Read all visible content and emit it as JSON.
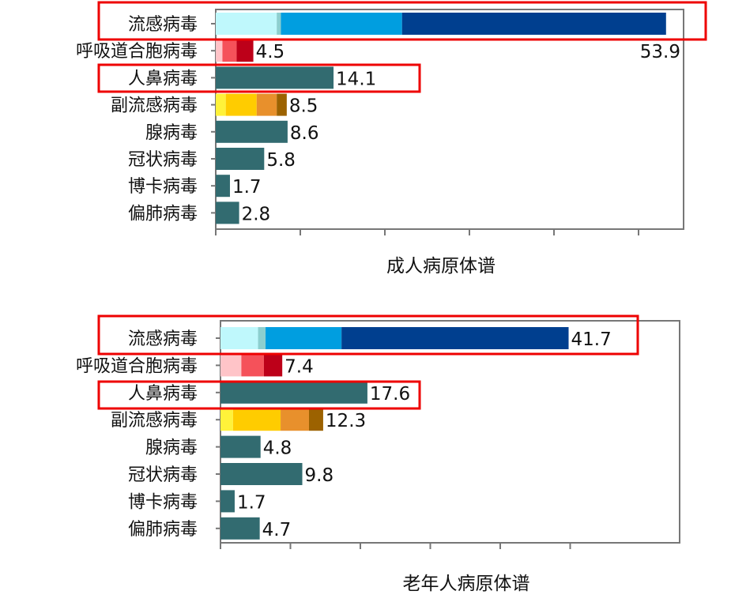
{
  "chart_data": [
    {
      "type": "bar",
      "orientation": "horizontal",
      "stacked": true,
      "title": "成人病原体谱",
      "xlim": [
        0,
        56
      ],
      "grid": false,
      "categories": [
        "流感病毒",
        "呼吸道合胞病毒",
        "人鼻病毒",
        "副流感病毒",
        "腺病毒",
        "冠状病毒",
        "博卡病毒",
        "偏肺病毒"
      ],
      "totals": [
        53.9,
        4.5,
        14.1,
        8.5,
        8.6,
        5.8,
        1.7,
        2.8
      ],
      "total_labels": [
        "53.9",
        "4.5",
        "14.1",
        "8.5",
        "8.6",
        "5.8",
        "1.7",
        "2.8"
      ],
      "segments": [
        [
          7.3,
          0.5,
          14.5,
          31.6
        ],
        [
          0.8,
          1.7,
          2.0
        ],
        [
          14.1
        ],
        [
          1.2,
          3.7,
          2.4,
          1.2
        ],
        [
          8.6
        ],
        [
          5.8
        ],
        [
          1.7
        ],
        [
          2.8
        ]
      ],
      "highlighted": [
        "流感病毒",
        "人鼻病毒"
      ]
    },
    {
      "type": "bar",
      "orientation": "horizontal",
      "stacked": true,
      "title": "老年人病原体谱",
      "xlim": [
        0,
        55
      ],
      "grid": false,
      "categories": [
        "流感病毒",
        "呼吸道合胞病毒",
        "人鼻病毒",
        "副流感病毒",
        "腺病毒",
        "冠状病毒",
        "博卡病毒",
        "偏肺病毒"
      ],
      "totals": [
        41.7,
        7.4,
        17.6,
        12.3,
        4.8,
        9.8,
        1.7,
        4.7
      ],
      "total_labels": [
        "41.7",
        "7.4",
        "17.6",
        "12.3",
        "4.8",
        "9.8",
        "1.7",
        "4.7"
      ],
      "segments": [
        [
          4.5,
          0.9,
          9.1,
          27.2
        ],
        [
          2.5,
          2.7,
          2.2
        ],
        [
          17.6
        ],
        [
          1.5,
          5.7,
          3.4,
          1.7
        ],
        [
          4.8
        ],
        [
          9.8
        ],
        [
          1.7
        ],
        [
          4.7
        ]
      ],
      "highlighted": [
        "流感病毒",
        "人鼻病毒"
      ]
    }
  ],
  "colors": {
    "flu": [
      "#bff8fc",
      "#8ccfcf",
      "#009ee0",
      "#003f8f"
    ],
    "rsv": [
      "#ffc4c8",
      "#f5515a",
      "#bd0019"
    ],
    "para": [
      "#fff23a",
      "#ffcc00",
      "#e8902c",
      "#9c6200"
    ],
    "single": "#326b70",
    "highlight_box": "#ee0000",
    "axis": "#777777"
  }
}
